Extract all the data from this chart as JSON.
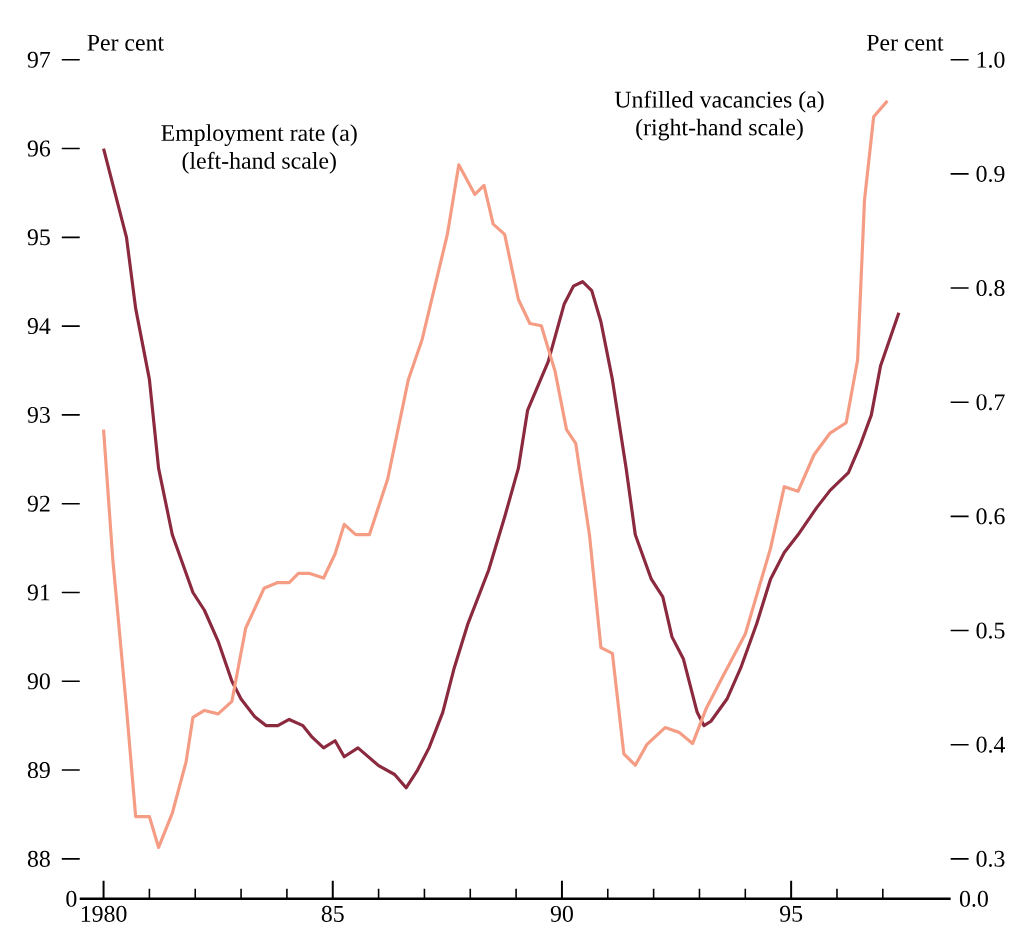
{
  "chart_data": {
    "type": "line",
    "ylabel": "Per cent",
    "y2label": "Per cent",
    "annotations": [
      "0",
      "0.0"
    ],
    "xlim": [
      1979.48,
      1998.48
    ],
    "ylim": [
      87.55,
      97
    ],
    "y2lim": [
      0.265,
      1.0
    ],
    "xticks": [
      {
        "value": 1980,
        "label": "1980"
      },
      {
        "value": 1981,
        "label": null
      },
      {
        "value": 1982,
        "label": null
      },
      {
        "value": 1983,
        "label": null
      },
      {
        "value": 1984,
        "label": null
      },
      {
        "value": 1985,
        "label": "85"
      },
      {
        "value": 1986,
        "label": null
      },
      {
        "value": 1987,
        "label": null
      },
      {
        "value": 1988,
        "label": null
      },
      {
        "value": 1989,
        "label": null
      },
      {
        "value": 1990,
        "label": "90"
      },
      {
        "value": 1991,
        "label": null
      },
      {
        "value": 1992,
        "label": null
      },
      {
        "value": 1993,
        "label": null
      },
      {
        "value": 1994,
        "label": null
      },
      {
        "value": 1995,
        "label": "95"
      },
      {
        "value": 1996,
        "label": null
      },
      {
        "value": 1997,
        "label": null
      }
    ],
    "yticks": [
      88,
      89,
      90,
      91,
      92,
      93,
      94,
      95,
      96,
      97
    ],
    "y2ticks": [
      {
        "value": 0.3,
        "label": "0.3"
      },
      {
        "value": 0.4,
        "label": "0.4"
      },
      {
        "value": 0.5,
        "label": "0.5"
      },
      {
        "value": 0.6,
        "label": "0.6"
      },
      {
        "value": 0.7,
        "label": "0.7"
      },
      {
        "value": 0.8,
        "label": "0.8"
      },
      {
        "value": 0.9,
        "label": "0.9"
      },
      {
        "value": 1.0,
        "label": "1.0"
      }
    ],
    "grid": false,
    "legend": false,
    "marker": "none",
    "line_style": "solid",
    "series": [
      {
        "name": "Employment rate (a) (left-hand scale)",
        "color": "#8b2a3f",
        "axis": "y",
        "x": [
          1980.0,
          1980.2,
          1980.5,
          1980.7,
          1981.0,
          1981.2,
          1981.5,
          1981.95,
          1982.2,
          1982.5,
          1982.8,
          1983.0,
          1983.3,
          1983.55,
          1983.8,
          1984.05,
          1984.35,
          1984.55,
          1984.8,
          1985.05,
          1985.25,
          1985.55,
          1986.0,
          1986.35,
          1986.6,
          1986.85,
          1987.1,
          1987.4,
          1987.65,
          1987.95,
          1988.4,
          1988.75,
          1989.05,
          1989.25,
          1989.7,
          1990.05,
          1990.25,
          1990.45,
          1990.65,
          1990.85,
          1991.1,
          1991.4,
          1991.6,
          1991.95,
          1992.2,
          1992.4,
          1992.65,
          1992.95,
          1993.1,
          1993.25,
          1993.6,
          1993.9,
          1994.25,
          1994.55,
          1994.85,
          1995.15,
          1995.55,
          1995.85,
          1996.25,
          1996.5,
          1996.75,
          1996.95,
          1997.35
        ],
        "values": [
          96.0,
          95.6,
          95.0,
          94.2,
          93.4,
          92.4,
          91.65,
          91.0,
          90.8,
          90.45,
          90.0,
          89.8,
          89.6,
          89.5,
          89.5,
          89.57,
          89.5,
          89.37,
          89.25,
          89.33,
          89.15,
          89.25,
          89.05,
          88.95,
          88.8,
          89.0,
          89.25,
          89.65,
          90.15,
          90.65,
          91.25,
          91.85,
          92.4,
          93.05,
          93.6,
          94.25,
          94.45,
          94.5,
          94.4,
          94.05,
          93.4,
          92.4,
          91.65,
          91.15,
          90.95,
          90.5,
          90.25,
          89.65,
          89.5,
          89.55,
          89.8,
          90.15,
          90.65,
          91.15,
          91.45,
          91.65,
          91.95,
          92.15,
          92.35,
          92.65,
          93.0,
          93.55,
          94.15
        ]
      },
      {
        "name": "Unfilled vacancies (a) (right-hand scale)",
        "color": "#f59c84",
        "axis": "y2",
        "x": [
          1980.0,
          1980.2,
          1980.5,
          1980.7,
          1981.0,
          1981.2,
          1981.5,
          1981.8,
          1981.95,
          1982.2,
          1982.5,
          1982.8,
          1983.1,
          1983.5,
          1983.8,
          1984.05,
          1984.25,
          1984.5,
          1984.8,
          1985.05,
          1985.25,
          1985.5,
          1985.8,
          1986.2,
          1986.65,
          1986.95,
          1987.5,
          1987.75,
          1988.1,
          1988.3,
          1988.5,
          1988.75,
          1989.05,
          1989.3,
          1989.55,
          1989.85,
          1990.1,
          1990.3,
          1990.6,
          1990.85,
          1991.1,
          1991.35,
          1991.6,
          1991.85,
          1992.25,
          1992.55,
          1992.85,
          1993.15,
          1993.5,
          1994.0,
          1994.55,
          1994.85,
          1995.15,
          1995.5,
          1995.85,
          1996.2,
          1996.45,
          1996.6,
          1996.8,
          1997.1
        ],
        "values": [
          0.676,
          0.563,
          0.432,
          0.337,
          0.337,
          0.31,
          0.34,
          0.385,
          0.424,
          0.43,
          0.427,
          0.438,
          0.502,
          0.537,
          0.542,
          0.542,
          0.55,
          0.55,
          0.546,
          0.567,
          0.593,
          0.584,
          0.584,
          0.633,
          0.72,
          0.755,
          0.847,
          0.908,
          0.882,
          0.89,
          0.856,
          0.847,
          0.79,
          0.769,
          0.767,
          0.727,
          0.676,
          0.664,
          0.584,
          0.485,
          0.48,
          0.392,
          0.382,
          0.4,
          0.415,
          0.411,
          0.401,
          0.432,
          0.459,
          0.497,
          0.572,
          0.626,
          0.622,
          0.654,
          0.673,
          0.682,
          0.737,
          0.877,
          0.95,
          0.964
        ]
      }
    ]
  }
}
